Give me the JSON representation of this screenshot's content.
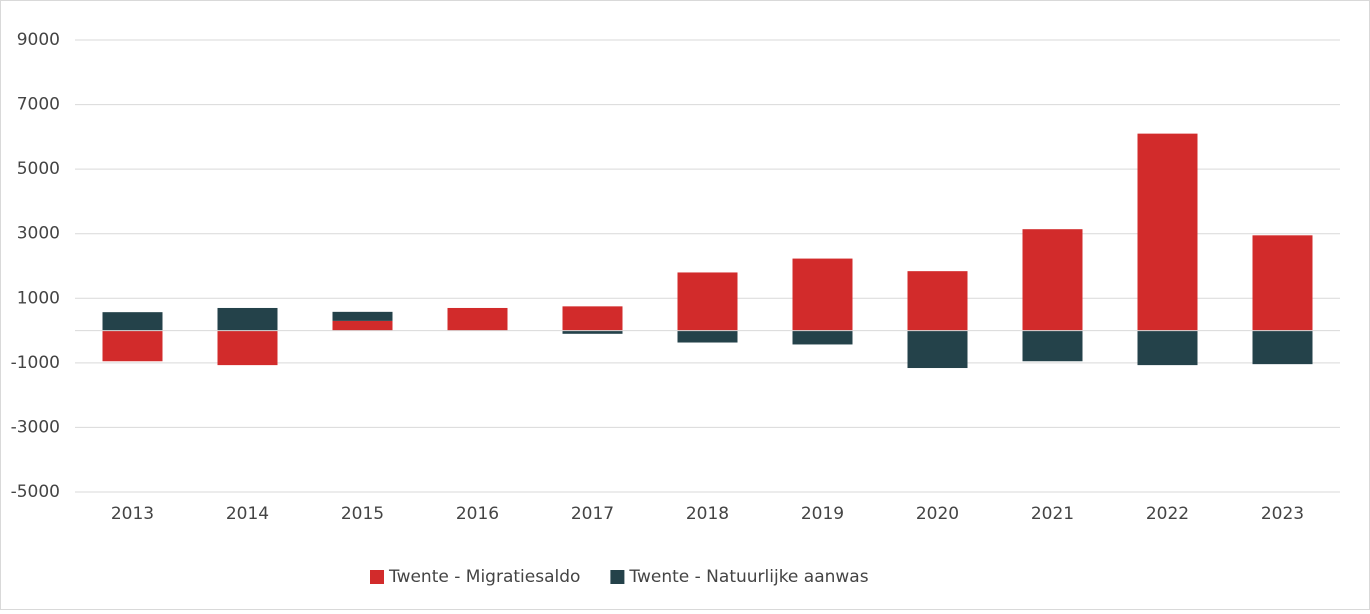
{
  "chart_data": {
    "type": "stacked_bar",
    "categories": [
      "2013",
      "2014",
      "2015",
      "2016",
      "2017",
      "2018",
      "2019",
      "2020",
      "2021",
      "2022",
      "2023"
    ],
    "series": [
      {
        "name": "Twente - Migratiesaldo",
        "color": "#d22b2b",
        "values": [
          -950,
          -1070,
          300,
          700,
          750,
          1800,
          2230,
          1840,
          3140,
          6100,
          2950
        ]
      },
      {
        "name": "Twente - Natuurlijke aanwas",
        "color": "#24424a",
        "values": [
          570,
          700,
          280,
          0,
          -100,
          -370,
          -430,
          -1160,
          -950,
          -1070,
          -1040
        ]
      }
    ],
    "ylim": [
      -5000,
      9000
    ],
    "yticks": [
      -5000,
      -3000,
      -1000,
      1000,
      3000,
      5000,
      7000,
      9000
    ],
    "grid": true,
    "legend": "bottom"
  }
}
